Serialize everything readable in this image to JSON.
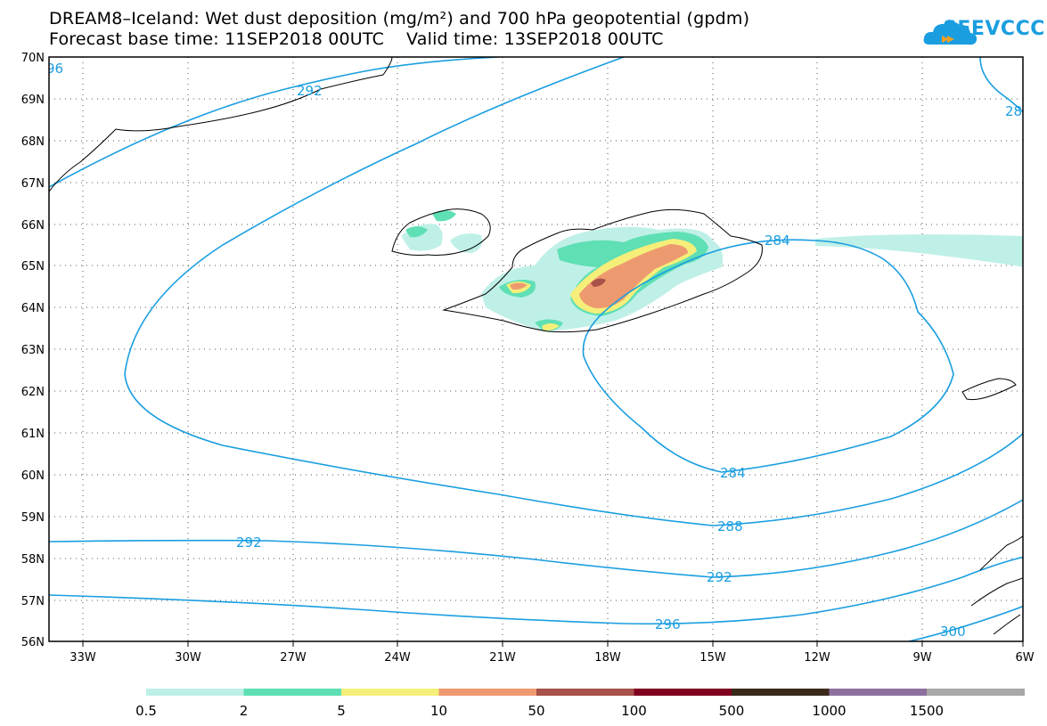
{
  "title_line1": "DREAM8–Iceland: Wet dust deposition (mg/m²) and 700 hPa geopotential (gpdm)",
  "title_line2": "Forecast base time: 11SEP2018 00UTC    Valid time: 13SEP2018 00UTC",
  "logo_text": "SEEVCCC",
  "lat_labels": [
    "70N",
    "69N",
    "68N",
    "67N",
    "66N",
    "65N",
    "64N",
    "63N",
    "62N",
    "61N",
    "60N",
    "59N",
    "58N",
    "57N",
    "56N"
  ],
  "lon_labels": [
    "33W",
    "30W",
    "27W",
    "24W",
    "21W",
    "18W",
    "15W",
    "12W",
    "9W",
    "6W"
  ],
  "contour_labels": [
    "292",
    "292",
    "292",
    "284",
    "284",
    "288",
    "292",
    "296",
    "300",
    "96",
    "28"
  ],
  "legend": {
    "colors": [
      "#bff0e8",
      "#5fdfb4",
      "#f5ef7a",
      "#ee9a70",
      "#a8524a",
      "#800020",
      "#3a2a1a",
      "#8e70a0",
      "#a8a8a8"
    ],
    "labels": [
      "0.5",
      "2",
      "5",
      "10",
      "50",
      "100",
      "500",
      "1000",
      "1500"
    ]
  },
  "colors": {
    "contour": "#1a9ee0",
    "coast": "#000000"
  }
}
